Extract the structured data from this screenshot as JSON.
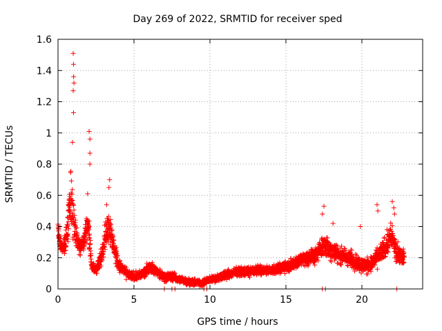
{
  "chart_data": {
    "type": "scatter",
    "title": "Day 269 of 2022, SRMTID for receiver sped",
    "xlabel": "GPS time / hours",
    "ylabel": "SRMTID / TECUs",
    "xlim": [
      0,
      24
    ],
    "ylim": [
      0,
      1.6
    ],
    "xticks": [
      0,
      5,
      10,
      15,
      20
    ],
    "yticks": [
      0,
      0.2,
      0.4,
      0.6,
      0.8,
      1,
      1.2,
      1.4,
      1.6
    ],
    "xtick_labels": [
      "0",
      "5",
      "10",
      "15",
      "20"
    ],
    "ytick_labels": [
      "0",
      "0.2",
      "0.4",
      "0.6",
      "0.8",
      "1",
      "1.2",
      "1.4",
      "1.6"
    ],
    "grid": true,
    "marker": "+",
    "color": "#ff0000",
    "data_range_hours": [
      0,
      22.8
    ],
    "envelope": {
      "x": [
        0,
        0.1,
        0.3,
        0.5,
        0.7,
        0.8,
        0.9,
        1.0,
        1.1,
        1.2,
        1.4,
        1.7,
        1.9,
        2.0,
        2.1,
        2.2,
        2.4,
        2.6,
        2.8,
        3.0,
        3.2,
        3.4,
        3.6,
        3.8,
        4.0,
        4.3,
        4.6,
        5.0,
        5.5,
        6.0,
        6.3,
        6.6,
        7.0,
        7.5,
        8.0,
        8.5,
        9.0,
        9.5,
        10.0,
        10.5,
        11.0,
        11.5,
        12.0,
        12.5,
        13.0,
        13.5,
        14.0,
        14.5,
        15.0,
        15.5,
        16.0,
        16.5,
        17.0,
        17.5,
        17.8,
        18.0,
        18.5,
        19.0,
        19.5,
        20.0,
        20.5,
        21.0,
        21.5,
        21.8,
        22.0,
        22.2,
        22.5,
        22.8
      ],
      "center": [
        0.4,
        0.3,
        0.25,
        0.3,
        0.45,
        0.6,
        0.55,
        0.45,
        0.4,
        0.32,
        0.28,
        0.3,
        0.4,
        0.42,
        0.3,
        0.15,
        0.12,
        0.14,
        0.18,
        0.3,
        0.38,
        0.4,
        0.3,
        0.22,
        0.15,
        0.12,
        0.09,
        0.08,
        0.09,
        0.14,
        0.13,
        0.1,
        0.08,
        0.08,
        0.06,
        0.05,
        0.04,
        0.04,
        0.06,
        0.07,
        0.09,
        0.1,
        0.11,
        0.11,
        0.12,
        0.12,
        0.12,
        0.13,
        0.14,
        0.16,
        0.19,
        0.2,
        0.22,
        0.28,
        0.25,
        0.25,
        0.22,
        0.2,
        0.18,
        0.15,
        0.15,
        0.2,
        0.26,
        0.32,
        0.34,
        0.25,
        0.22,
        0.2
      ],
      "spread": [
        0.06,
        0.06,
        0.06,
        0.1,
        0.18,
        0.25,
        0.3,
        0.25,
        0.15,
        0.1,
        0.08,
        0.08,
        0.12,
        0.15,
        0.1,
        0.05,
        0.05,
        0.06,
        0.08,
        0.12,
        0.15,
        0.15,
        0.1,
        0.08,
        0.06,
        0.05,
        0.04,
        0.04,
        0.04,
        0.05,
        0.05,
        0.04,
        0.04,
        0.04,
        0.03,
        0.03,
        0.03,
        0.03,
        0.03,
        0.03,
        0.04,
        0.04,
        0.04,
        0.04,
        0.04,
        0.04,
        0.04,
        0.05,
        0.05,
        0.06,
        0.07,
        0.07,
        0.08,
        0.1,
        0.09,
        0.09,
        0.08,
        0.08,
        0.08,
        0.07,
        0.07,
        0.08,
        0.1,
        0.12,
        0.12,
        0.09,
        0.08,
        0.07
      ]
    },
    "peaks": [
      {
        "x": 0.95,
        "y": 0.94
      },
      {
        "x": 1.0,
        "y": 1.51
      },
      {
        "x": 1.02,
        "y": 1.44
      },
      {
        "x": 1.03,
        "y": 1.36
      },
      {
        "x": 1.05,
        "y": 1.32
      },
      {
        "x": 1.0,
        "y": 1.27
      },
      {
        "x": 1.02,
        "y": 1.13
      },
      {
        "x": 2.05,
        "y": 1.01
      },
      {
        "x": 2.1,
        "y": 0.96
      },
      {
        "x": 2.1,
        "y": 0.87
      },
      {
        "x": 2.1,
        "y": 0.8
      },
      {
        "x": 1.95,
        "y": 0.61
      },
      {
        "x": 3.4,
        "y": 0.7
      },
      {
        "x": 3.35,
        "y": 0.65
      },
      {
        "x": 3.2,
        "y": 0.54
      },
      {
        "x": 17.5,
        "y": 0.53
      },
      {
        "x": 17.4,
        "y": 0.48
      },
      {
        "x": 18.1,
        "y": 0.42
      },
      {
        "x": 19.9,
        "y": 0.4
      },
      {
        "x": 21.0,
        "y": 0.54
      },
      {
        "x": 21.05,
        "y": 0.5
      },
      {
        "x": 22.0,
        "y": 0.56
      },
      {
        "x": 22.1,
        "y": 0.52
      },
      {
        "x": 22.15,
        "y": 0.48
      }
    ],
    "zero_values": [
      7.0,
      7.5,
      7.7,
      9.6,
      9.8,
      17.4,
      17.6,
      22.3
    ]
  }
}
